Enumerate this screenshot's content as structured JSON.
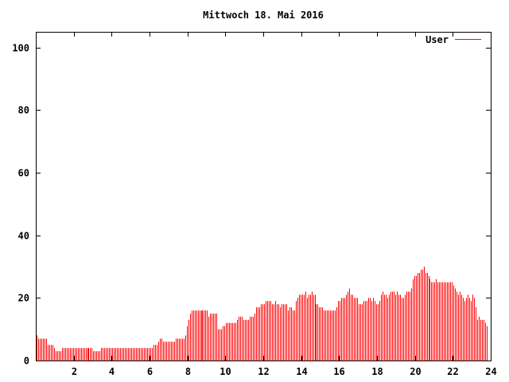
{
  "chart_data": {
    "type": "bar",
    "style": "impulses",
    "title": "Mittwoch 18. Mai 2016",
    "xlabel": "",
    "ylabel": "",
    "xlim": [
      0,
      24
    ],
    "ylim": [
      0,
      105
    ],
    "x_ticks": [
      "2",
      "4",
      "6",
      "8",
      "10",
      "12",
      "14",
      "16",
      "18",
      "20",
      "22",
      "24"
    ],
    "y_ticks": [
      "0",
      "20",
      "40",
      "60",
      "80",
      "100"
    ],
    "grid": false,
    "legend": "top-right",
    "sample_interval_minutes": 5,
    "series": [
      {
        "name": "User",
        "color": "#ff0000",
        "values": [
          8,
          7,
          7,
          7,
          7,
          7,
          7,
          5,
          5,
          5,
          5,
          4,
          3,
          3,
          3,
          3,
          4,
          4,
          4,
          4,
          4,
          4,
          4,
          4,
          4,
          4,
          4,
          4,
          4,
          4,
          4,
          4,
          4,
          4,
          4,
          4,
          3,
          3,
          3,
          3,
          3,
          4,
          4,
          4,
          4,
          4,
          4,
          4,
          4,
          4,
          4,
          4,
          4,
          4,
          4,
          4,
          4,
          4,
          4,
          4,
          4,
          4,
          4,
          4,
          4,
          4,
          4,
          4,
          4,
          4,
          4,
          4,
          4,
          4,
          5,
          5,
          5,
          6,
          7,
          7,
          6,
          6,
          6,
          6,
          6,
          6,
          6,
          6,
          7,
          7,
          7,
          7,
          7,
          7,
          8,
          11,
          13,
          15,
          16,
          16,
          16,
          16,
          16,
          16,
          16,
          16,
          16,
          16,
          16,
          14,
          15,
          15,
          15,
          15,
          15,
          10,
          10,
          10,
          11,
          11,
          12,
          12,
          12,
          12,
          12,
          12,
          12,
          13,
          14,
          14,
          14,
          13,
          13,
          13,
          13,
          14,
          14,
          14,
          15,
          17,
          17,
          17,
          18,
          18,
          18,
          19,
          19,
          19,
          19,
          18,
          18,
          19,
          18,
          18,
          17,
          18,
          18,
          18,
          18,
          16,
          17,
          17,
          16,
          16,
          19,
          20,
          21,
          21,
          21,
          21,
          22,
          20,
          21,
          21,
          22,
          21,
          21,
          18,
          18,
          17,
          17,
          17,
          16,
          16,
          16,
          16,
          16,
          16,
          16,
          16,
          17,
          19,
          19,
          20,
          20,
          20,
          21,
          22,
          23,
          21,
          21,
          20,
          20,
          20,
          18,
          18,
          18,
          19,
          19,
          19,
          20,
          20,
          19,
          20,
          19,
          18,
          18,
          19,
          21,
          22,
          21,
          21,
          20,
          21,
          22,
          22,
          22,
          21,
          22,
          21,
          21,
          20,
          20,
          21,
          22,
          22,
          22,
          23,
          26,
          27,
          27,
          28,
          28,
          29,
          29,
          30,
          28,
          28,
          27,
          26,
          25,
          25,
          25,
          26,
          25,
          25,
          25,
          25,
          25,
          25,
          25,
          25,
          25,
          25,
          24,
          23,
          22,
          21,
          22,
          21,
          20,
          19,
          20,
          21,
          20,
          19,
          21,
          20,
          17,
          13,
          14,
          13,
          13,
          13,
          12,
          11
        ]
      }
    ]
  }
}
